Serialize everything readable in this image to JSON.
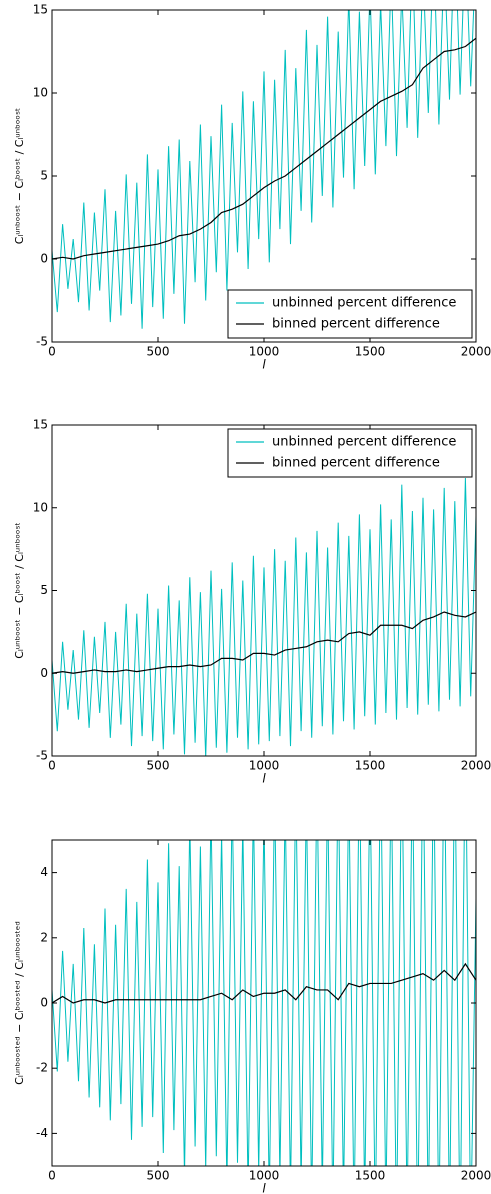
{
  "chart_data": [
    {
      "type": "line",
      "xlabel": "l",
      "ylabel": "Cₗᵘⁿᵇᵒᵒˢᵗ − Cₗᵇᵒᵒˢᵗ / Cₗᵘⁿᵇᵒᵒˢᵗ",
      "xlim": [
        0,
        2000
      ],
      "xticks": [
        0,
        500,
        1000,
        1500,
        2000
      ],
      "ylim": [
        -5,
        15
      ],
      "yticks": [
        -5,
        0,
        5,
        10,
        15
      ],
      "legend": "lower right",
      "series": [
        {
          "name": "unbinned percent difference",
          "color": "#00bfbf",
          "x": [
            0,
            25,
            50,
            75,
            100,
            125,
            150,
            175,
            200,
            225,
            250,
            275,
            300,
            325,
            350,
            375,
            400,
            425,
            450,
            475,
            500,
            525,
            550,
            575,
            600,
            625,
            650,
            675,
            700,
            725,
            750,
            775,
            800,
            825,
            850,
            875,
            900,
            925,
            950,
            975,
            1000,
            1025,
            1050,
            1075,
            1100,
            1125,
            1150,
            1175,
            1200,
            1225,
            1250,
            1275,
            1300,
            1325,
            1350,
            1375,
            1400,
            1425,
            1450,
            1475,
            1500,
            1525,
            1550,
            1575,
            1600,
            1625,
            1650,
            1675,
            1700,
            1725,
            1750,
            1775,
            1800,
            1825,
            1850,
            1875,
            1900,
            1925,
            1950,
            1975,
            2000
          ],
          "values": [
            0.5,
            -3.2,
            2.1,
            -1.8,
            1.2,
            -2.6,
            3.4,
            -3.1,
            2.8,
            -1.9,
            4.2,
            -3.8,
            2.9,
            -3.4,
            5.1,
            -2.7,
            4.6,
            -4.2,
            6.3,
            -2.9,
            5.4,
            -3.6,
            6.8,
            -2.1,
            7.2,
            -3.9,
            5.9,
            -1.4,
            8.1,
            -2.5,
            7.4,
            -0.8,
            9.3,
            -1.9,
            8.2,
            0.4,
            10.1,
            -0.6,
            9.5,
            1.2,
            11.3,
            -0.2,
            10.8,
            1.8,
            12.6,
            0.9,
            11.5,
            2.9,
            13.8,
            2.2,
            12.9,
            3.8,
            14.6,
            3.1,
            13.7,
            4.9,
            15.8,
            4.2,
            14.9,
            5.6,
            16.3,
            5.1,
            15.4,
            6.8,
            17.2,
            6.2,
            16.1,
            7.9,
            18.4,
            7.3,
            17.6,
            8.8,
            19.1,
            8.1,
            18.3,
            9.6,
            20.2,
            9.9,
            19.5,
            10.4,
            18.7
          ]
        },
        {
          "name": "binned percent difference",
          "color": "#000000",
          "x": [
            0,
            50,
            100,
            150,
            200,
            250,
            300,
            350,
            400,
            450,
            500,
            550,
            600,
            650,
            700,
            750,
            800,
            850,
            900,
            950,
            1000,
            1050,
            1100,
            1150,
            1200,
            1250,
            1300,
            1350,
            1400,
            1450,
            1500,
            1550,
            1600,
            1650,
            1700,
            1750,
            1800,
            1850,
            1900,
            1950,
            2000
          ],
          "values": [
            0,
            0.1,
            0,
            0.2,
            0.3,
            0.4,
            0.5,
            0.6,
            0.7,
            0.8,
            0.9,
            1.1,
            1.4,
            1.5,
            1.8,
            2.2,
            2.8,
            3.0,
            3.3,
            3.8,
            4.3,
            4.7,
            5.0,
            5.5,
            6.0,
            6.5,
            7.0,
            7.5,
            8.0,
            8.5,
            9.0,
            9.5,
            9.8,
            10.1,
            10.5,
            11.5,
            12.0,
            12.5,
            12.6,
            12.8,
            13.3
          ]
        }
      ]
    },
    {
      "type": "line",
      "xlabel": "l",
      "ylabel": "Cₗᵘⁿᵇᵒᵒˢᵗ − Cₗᵇᵒᵒˢᵗ / Cₗᵘⁿᵇᵒᵒˢᵗ",
      "xlim": [
        0,
        2000
      ],
      "xticks": [
        0,
        500,
        1000,
        1500,
        2000
      ],
      "ylim": [
        -5,
        15
      ],
      "yticks": [
        -5,
        0,
        5,
        10,
        15
      ],
      "legend": "upper right",
      "series": [
        {
          "name": "unbinned percent difference",
          "color": "#00bfbf",
          "x": [
            0,
            25,
            50,
            75,
            100,
            125,
            150,
            175,
            200,
            225,
            250,
            275,
            300,
            325,
            350,
            375,
            400,
            425,
            450,
            475,
            500,
            525,
            550,
            575,
            600,
            625,
            650,
            675,
            700,
            725,
            750,
            775,
            800,
            825,
            850,
            875,
            900,
            925,
            950,
            975,
            1000,
            1025,
            1050,
            1075,
            1100,
            1125,
            1150,
            1175,
            1200,
            1225,
            1250,
            1275,
            1300,
            1325,
            1350,
            1375,
            1400,
            1425,
            1450,
            1475,
            1500,
            1525,
            1550,
            1575,
            1600,
            1625,
            1650,
            1675,
            1700,
            1725,
            1750,
            1775,
            1800,
            1825,
            1850,
            1875,
            1900,
            1925,
            1950,
            1975,
            2000
          ],
          "values": [
            0.8,
            -3.5,
            1.9,
            -2.2,
            1.4,
            -2.8,
            2.6,
            -3.3,
            2.2,
            -2.4,
            3.1,
            -3.9,
            2.5,
            -3.1,
            4.2,
            -4.4,
            3.6,
            -3.8,
            4.8,
            -4.1,
            3.9,
            -4.6,
            5.3,
            -3.7,
            4.4,
            -4.9,
            5.8,
            -4.2,
            4.9,
            -5.1,
            6.2,
            -4.5,
            5.1,
            -4.8,
            6.7,
            -3.9,
            5.6,
            -4.6,
            7.1,
            -4.3,
            6.4,
            -4.1,
            7.5,
            -3.8,
            6.8,
            -4.4,
            8.2,
            -3.5,
            7.3,
            -3.9,
            8.6,
            -3.2,
            7.6,
            -3.7,
            9.1,
            -2.9,
            8.3,
            -3.4,
            9.6,
            -2.6,
            8.7,
            -3.1,
            10.2,
            -2.4,
            9.3,
            -2.8,
            11.4,
            -2.1,
            9.8,
            -2.5,
            10.6,
            -1.9,
            9.9,
            -2.3,
            11.2,
            -1.6,
            10.4,
            -2.0,
            11.8,
            -1.4,
            9.5
          ]
        },
        {
          "name": "binned percent difference",
          "color": "#000000",
          "x": [
            0,
            50,
            100,
            150,
            200,
            250,
            300,
            350,
            400,
            450,
            500,
            550,
            600,
            650,
            700,
            750,
            800,
            850,
            900,
            950,
            1000,
            1050,
            1100,
            1150,
            1200,
            1250,
            1300,
            1350,
            1400,
            1450,
            1500,
            1550,
            1600,
            1650,
            1700,
            1750,
            1800,
            1850,
            1900,
            1950,
            2000
          ],
          "values": [
            0,
            0.1,
            0,
            0.1,
            0.2,
            0.1,
            0.1,
            0.2,
            0.1,
            0.2,
            0.3,
            0.4,
            0.4,
            0.5,
            0.4,
            0.5,
            0.9,
            0.9,
            0.8,
            1.2,
            1.2,
            1.1,
            1.4,
            1.5,
            1.6,
            1.9,
            2.0,
            1.9,
            2.4,
            2.5,
            2.3,
            2.9,
            2.9,
            2.9,
            2.7,
            3.2,
            3.4,
            3.7,
            3.5,
            3.4,
            3.7
          ]
        }
      ]
    },
    {
      "type": "line",
      "xlabel": "l",
      "ylabel": "Cₗᵘⁿᵇᵒᵒˢᵗᵉᵈ − Cₗᵇᵒᵒˢᵗᵉᵈ / Cₗᵘⁿᵇᵒᵒˢᵗᵉᵈ",
      "xlim": [
        0,
        2000
      ],
      "xticks": [
        0,
        500,
        1000,
        1500,
        2000
      ],
      "ylim": [
        -5,
        5
      ],
      "yticks": [
        -4,
        -2,
        0,
        2,
        4
      ],
      "series": [
        {
          "color": "#00bfbf",
          "x": [
            0,
            25,
            50,
            75,
            100,
            125,
            150,
            175,
            200,
            225,
            250,
            275,
            300,
            325,
            350,
            375,
            400,
            425,
            450,
            475,
            500,
            525,
            550,
            575,
            600,
            625,
            650,
            675,
            700,
            725,
            750,
            775,
            800,
            825,
            850,
            875,
            900,
            925,
            950,
            975,
            1000,
            1025,
            1050,
            1075,
            1100,
            1125,
            1150,
            1175,
            1200,
            1225,
            1250,
            1275,
            1300,
            1325,
            1350,
            1375,
            1400,
            1425,
            1450,
            1475,
            1500,
            1525,
            1550,
            1575,
            1600,
            1625,
            1650,
            1675,
            1700,
            1725,
            1750,
            1775,
            1800,
            1825,
            1850,
            1875,
            1900,
            1925,
            1950,
            1975,
            2000
          ],
          "values": [
            0.4,
            -2.1,
            1.6,
            -1.8,
            1.2,
            -2.4,
            2.3,
            -2.9,
            1.8,
            -3.2,
            2.9,
            -3.6,
            2.4,
            -3.1,
            3.5,
            -4.2,
            3.1,
            -3.8,
            4.4,
            -3.5,
            3.7,
            -4.6,
            4.9,
            -3.9,
            4.2,
            -5.3,
            5.6,
            -4.4,
            4.8,
            -5.1,
            5.9,
            -4.7,
            5.2,
            -5.6,
            6.3,
            -4.9,
            5.5,
            -5.8,
            6.1,
            -5.2,
            5.7,
            -6.1,
            6.6,
            -5.4,
            6.2,
            -5.9,
            6.9,
            -5.6,
            6.4,
            -6.3,
            7.1,
            -5.8,
            6.7,
            -6.5,
            7.4,
            -6.1,
            6.8,
            -6.7,
            7.6,
            -6.2,
            7.2,
            -6.9,
            7.8,
            -6.4,
            7.3,
            -7.1,
            8.1,
            -6.6,
            7.5,
            -7.3,
            8.2,
            -6.8,
            7.7,
            -7.2,
            8.4,
            -6.9,
            7.9,
            -7.5,
            8.6,
            -7.1,
            3.2
          ]
        },
        {
          "color": "#000000",
          "x": [
            0,
            50,
            100,
            150,
            200,
            250,
            300,
            350,
            400,
            450,
            500,
            550,
            600,
            650,
            700,
            750,
            800,
            850,
            900,
            950,
            1000,
            1050,
            1100,
            1150,
            1200,
            1250,
            1300,
            1350,
            1400,
            1450,
            1500,
            1550,
            1600,
            1650,
            1700,
            1750,
            1800,
            1850,
            1900,
            1950,
            2000
          ],
          "values": [
            0,
            0.2,
            0,
            0.1,
            0.1,
            0,
            0.1,
            0.1,
            0.1,
            0.1,
            0.1,
            0.1,
            0.1,
            0.1,
            0.1,
            0.2,
            0.3,
            0.1,
            0.4,
            0.2,
            0.3,
            0.3,
            0.4,
            0.1,
            0.5,
            0.4,
            0.4,
            0.1,
            0.6,
            0.5,
            0.6,
            0.6,
            0.6,
            0.7,
            0.8,
            0.9,
            0.7,
            1.0,
            0.7,
            1.2,
            0.7
          ]
        }
      ]
    }
  ]
}
